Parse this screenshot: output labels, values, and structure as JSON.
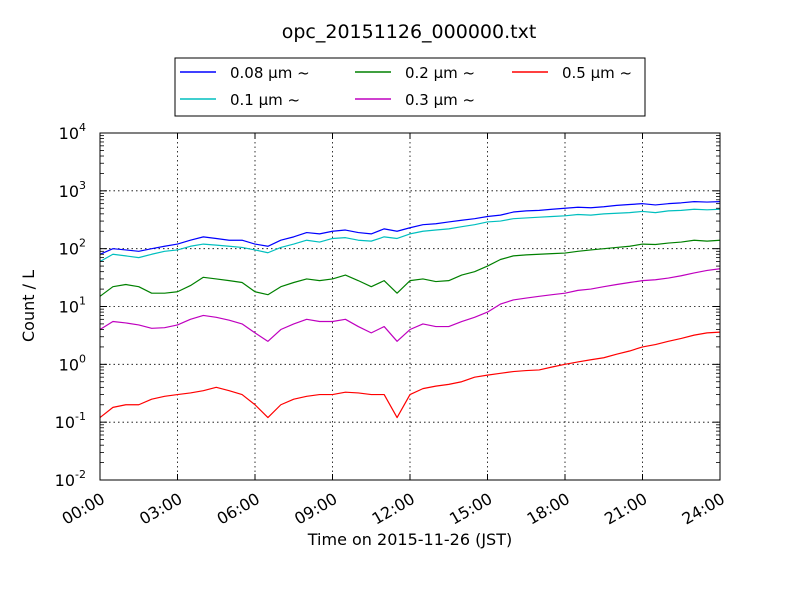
{
  "chart_data": {
    "type": "line",
    "title": "opc_20151126_000000.txt",
    "xlabel": "Time on 2015-11-26 (JST)",
    "ylabel": "Count / L",
    "yscale": "log",
    "xlim": [
      "00:00",
      "24:00"
    ],
    "ylim": [
      0.01,
      10000
    ],
    "xticks": [
      "00:00",
      "03:00",
      "06:00",
      "09:00",
      "12:00",
      "15:00",
      "18:00",
      "21:00",
      "24:00"
    ],
    "yticks": [
      {
        "base": "10",
        "exp": "-2"
      },
      {
        "base": "10",
        "exp": "-1"
      },
      {
        "base": "10",
        "exp": "0"
      },
      {
        "base": "10",
        "exp": "1"
      },
      {
        "base": "10",
        "exp": "2"
      },
      {
        "base": "10",
        "exp": "3"
      },
      {
        "base": "10",
        "exp": "4"
      }
    ],
    "grid": true,
    "legend_position": "top",
    "x_hours": [
      0,
      0.5,
      1,
      1.5,
      2,
      2.5,
      3,
      3.5,
      4,
      4.5,
      5,
      5.5,
      6,
      6.5,
      7,
      7.5,
      8,
      8.5,
      9,
      9.5,
      10,
      10.5,
      11,
      11.5,
      12,
      12.5,
      13,
      13.5,
      14,
      14.5,
      15,
      15.5,
      16,
      16.5,
      17,
      17.5,
      18,
      18.5,
      19,
      19.5,
      20,
      20.5,
      21,
      21.5,
      22,
      22.5,
      23,
      23.5,
      24
    ],
    "series": [
      {
        "name": "0.08 μm ~",
        "color": "#0000ff",
        "values": [
          80,
          100,
          95,
          90,
          100,
          110,
          120,
          140,
          160,
          150,
          140,
          140,
          120,
          110,
          140,
          160,
          190,
          180,
          200,
          210,
          190,
          180,
          220,
          200,
          230,
          260,
          270,
          290,
          310,
          330,
          360,
          380,
          430,
          450,
          460,
          480,
          500,
          520,
          510,
          530,
          560,
          580,
          600,
          570,
          600,
          620,
          650,
          640,
          650
        ]
      },
      {
        "name": "0.1 μm ~",
        "color": "#00bfbf",
        "values": [
          60,
          80,
          75,
          70,
          80,
          90,
          95,
          110,
          120,
          115,
          110,
          105,
          95,
          85,
          105,
          120,
          140,
          130,
          150,
          155,
          140,
          135,
          160,
          150,
          180,
          200,
          210,
          220,
          240,
          260,
          290,
          300,
          330,
          340,
          350,
          360,
          370,
          390,
          380,
          400,
          410,
          420,
          440,
          420,
          450,
          460,
          480,
          470,
          480
        ]
      },
      {
        "name": "0.2 μm ~",
        "color": "#008000",
        "values": [
          15,
          22,
          24,
          22,
          17,
          17,
          18,
          23,
          32,
          30,
          28,
          26,
          18,
          16,
          22,
          26,
          30,
          28,
          30,
          35,
          28,
          22,
          28,
          17,
          28,
          30,
          27,
          28,
          35,
          40,
          50,
          65,
          75,
          78,
          80,
          82,
          84,
          90,
          95,
          100,
          105,
          110,
          120,
          118,
          125,
          130,
          140,
          135,
          140
        ]
      },
      {
        "name": "0.3 μm ~",
        "color": "#bf00bf",
        "values": [
          4,
          5.5,
          5.2,
          4.8,
          4.2,
          4.3,
          4.8,
          6,
          7,
          6.5,
          5.8,
          5,
          3.5,
          2.5,
          4,
          5,
          6,
          5.5,
          5.5,
          6,
          4.5,
          3.5,
          4.5,
          2.5,
          4,
          5,
          4.5,
          4.5,
          5.5,
          6.5,
          8,
          11,
          13,
          14,
          15,
          16,
          17,
          19,
          20,
          22,
          24,
          26,
          28,
          29,
          31,
          34,
          38,
          42,
          45
        ]
      },
      {
        "name": "0.5 μm ~",
        "color": "#ff0000",
        "values": [
          0.12,
          0.18,
          0.2,
          0.2,
          0.25,
          0.28,
          0.3,
          0.32,
          0.35,
          0.4,
          0.35,
          0.3,
          0.2,
          0.12,
          0.2,
          0.25,
          0.28,
          0.3,
          0.3,
          0.33,
          0.32,
          0.3,
          0.3,
          0.12,
          0.3,
          0.38,
          0.42,
          0.45,
          0.5,
          0.6,
          0.65,
          0.7,
          0.75,
          0.78,
          0.8,
          0.9,
          1.0,
          1.1,
          1.2,
          1.3,
          1.5,
          1.7,
          2.0,
          2.2,
          2.5,
          2.8,
          3.2,
          3.5,
          3.6
        ]
      }
    ]
  }
}
